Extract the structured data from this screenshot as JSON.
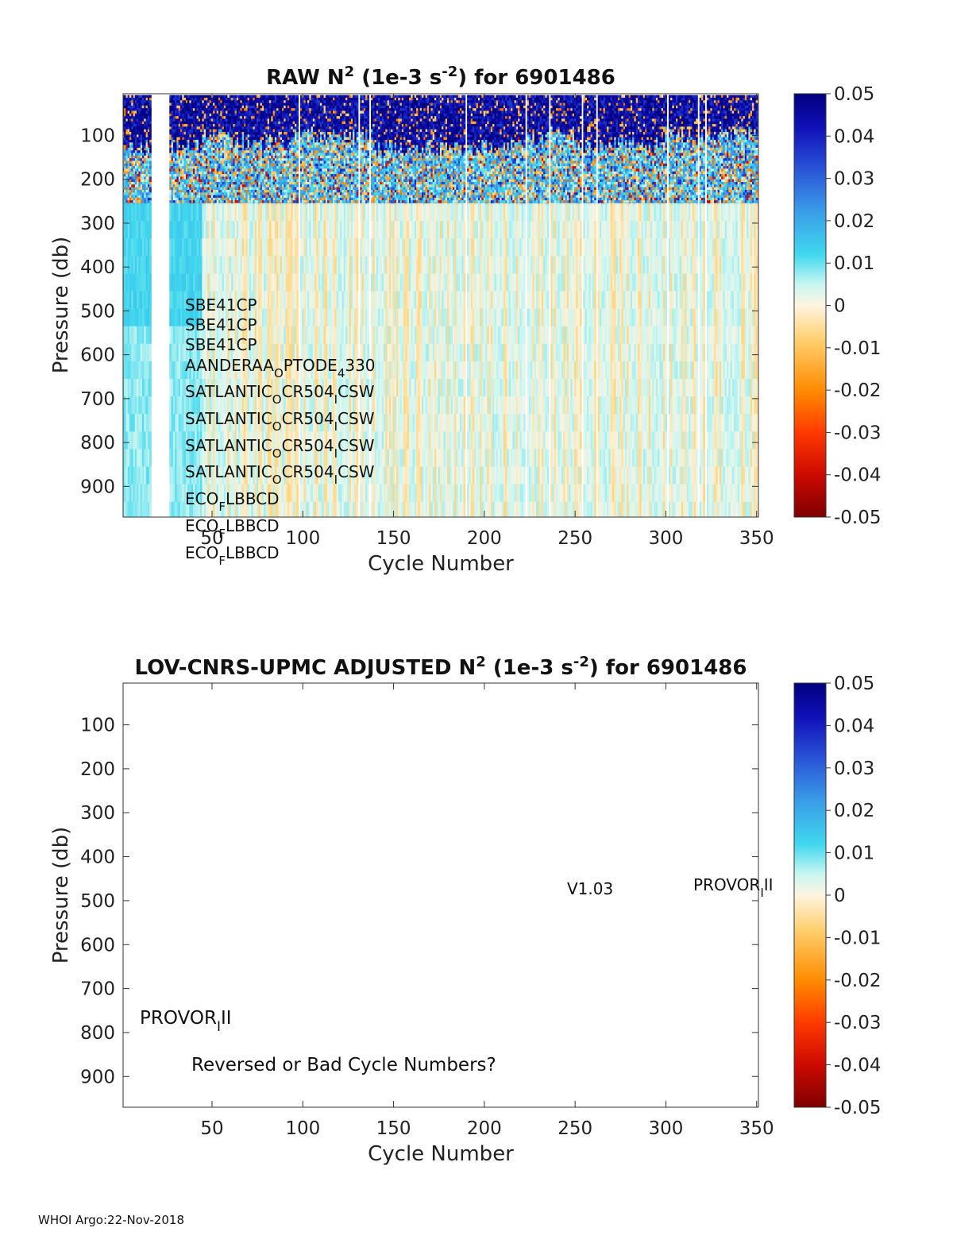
{
  "chart_data": [
    {
      "type": "heatmap",
      "title_parts": [
        "RAW N",
        "2",
        " (1e-3 s",
        "-2",
        ") for 6901486"
      ],
      "title": "RAW N2 (1e-3 s-2) for 6901486",
      "xlabel": "Cycle Number",
      "ylabel": "Pressure (db)",
      "xlim": [
        1,
        351
      ],
      "ylim": [
        970,
        5
      ],
      "xticks": [
        50,
        100,
        150,
        200,
        250,
        300,
        350
      ],
      "yticks": [
        100,
        200,
        300,
        400,
        500,
        600,
        700,
        800,
        900
      ],
      "colorbar": {
        "min": -0.05,
        "max": 0.05,
        "ticks": [
          "0.05",
          "0.04",
          "0.03",
          "0.02",
          "0.01",
          "0",
          "-0.01",
          "-0.02",
          "-0.03",
          "-0.04",
          "-0.05"
        ]
      },
      "description_of_field": {
        "upper_layer_pressure_range": [
          10,
          255
        ],
        "upper_layer_values": "strongly positive (0.02-0.05) near surface with noisy mixed positive/negative values",
        "deep_layer_values": "near zero (-0.005 to 0.01)",
        "missing_cycles": [
          17,
          18,
          19,
          20,
          21,
          22,
          23,
          24,
          25,
          26
        ]
      },
      "annotations": [
        {
          "parts": [
            "SBE41CP"
          ]
        },
        {
          "parts": [
            "SBE41CP"
          ]
        },
        {
          "parts": [
            "SBE41CP"
          ]
        },
        {
          "parts": [
            "AANDERAA",
            "O",
            "PTODE",
            "4",
            "330"
          ],
          "subs": [
            1,
            3
          ]
        },
        {
          "parts": [
            "SATLANTIC",
            "O",
            "CR504",
            "I",
            "CSW"
          ],
          "subs": [
            1,
            3
          ]
        },
        {
          "parts": [
            "SATLANTIC",
            "O",
            "CR504",
            "I",
            "CSW"
          ],
          "subs": [
            1,
            3
          ]
        },
        {
          "parts": [
            "SATLANTIC",
            "O",
            "CR504",
            "I",
            "CSW"
          ],
          "subs": [
            1,
            3
          ]
        },
        {
          "parts": [
            "SATLANTIC",
            "O",
            "CR504",
            "I",
            "CSW"
          ],
          "subs": [
            1,
            3
          ]
        },
        {
          "parts": [
            "ECO",
            "F",
            "LBBCD"
          ],
          "subs": [
            1
          ]
        },
        {
          "parts": [
            "ECO",
            "F",
            "LBBCD"
          ],
          "subs": [
            1
          ]
        },
        {
          "parts": [
            "ECO",
            "F",
            "LBBCD"
          ],
          "subs": [
            1
          ]
        }
      ]
    },
    {
      "type": "heatmap",
      "title_parts": [
        "LOV-CNRS-UPMC  ADJUSTED N",
        "2",
        " (1e-3 s",
        "-2",
        ") for 6901486"
      ],
      "title": "LOV-CNRS-UPMC  ADJUSTED N2 (1e-3 s-2) for 6901486",
      "xlabel": "Cycle Number",
      "ylabel": "Pressure (db)",
      "xlim": [
        1,
        351
      ],
      "ylim": [
        970,
        5
      ],
      "xticks": [
        50,
        100,
        150,
        200,
        250,
        300,
        350
      ],
      "yticks": [
        100,
        200,
        300,
        400,
        500,
        600,
        700,
        800,
        900
      ],
      "colorbar": {
        "min": -0.05,
        "max": 0.05,
        "ticks": [
          "0.05",
          "0.04",
          "0.03",
          "0.02",
          "0.01",
          "0",
          "-0.01",
          "-0.02",
          "-0.03",
          "-0.04",
          "-0.05"
        ]
      },
      "empty": true,
      "annotations": {
        "version": "V1.03",
        "platform_right": {
          "parts": [
            "PROVOR",
            "I",
            "II"
          ]
        },
        "platform_left": {
          "parts": [
            "PROVOR",
            "I",
            "II"
          ]
        },
        "warning": "Reversed or Bad Cycle Numbers?"
      }
    }
  ],
  "footer": "WHOI Argo:22-Nov-2018"
}
